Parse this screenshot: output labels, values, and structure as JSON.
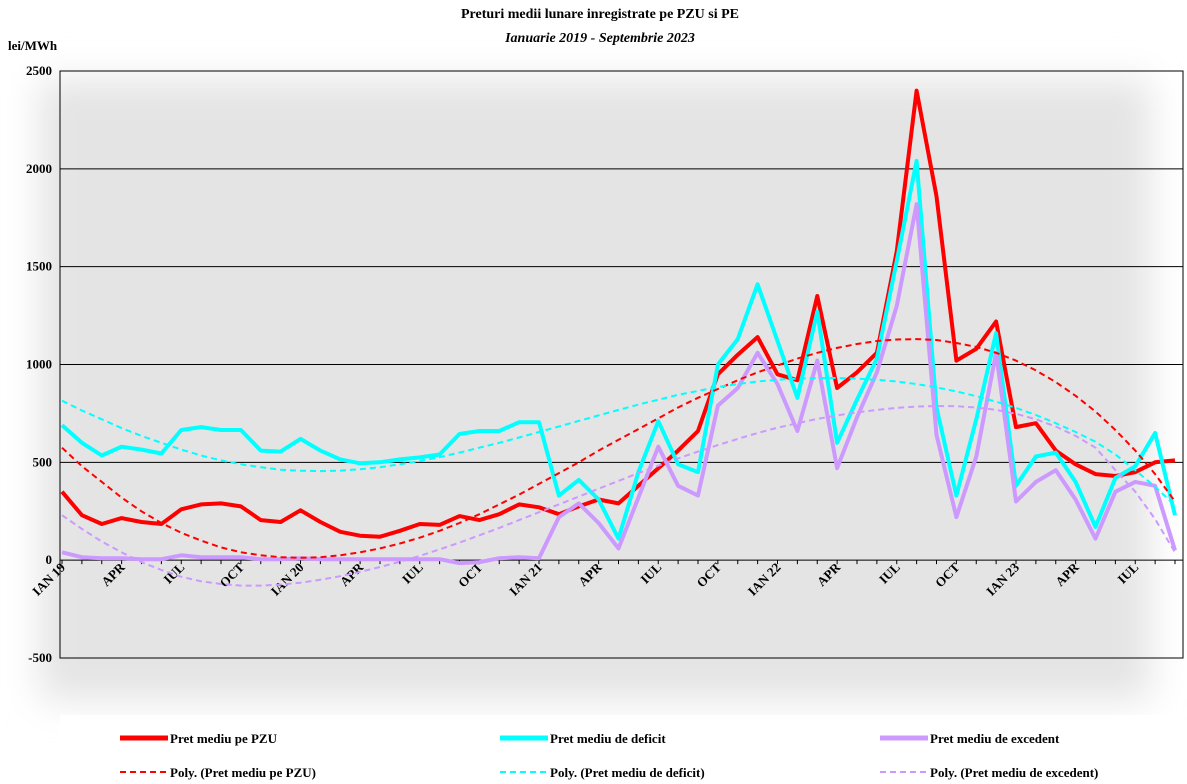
{
  "chart_data": {
    "type": "line",
    "title": "Preturi medii lunare inregistrate pe PZU si PE",
    "subtitle": "Ianuarie 2019 - Septembrie 2023",
    "y_label": "lei/MWh",
    "categories": [
      "IAN 19",
      null,
      null,
      "APR",
      null,
      null,
      "IUL",
      null,
      null,
      "OCT",
      null,
      null,
      "IAN 20",
      null,
      null,
      "APR",
      null,
      null,
      "IUL",
      null,
      null,
      "OCT",
      null,
      null,
      "IAN 21",
      null,
      null,
      "APR",
      null,
      null,
      "IUL",
      null,
      null,
      "OCT",
      null,
      null,
      "IAN 22",
      null,
      null,
      "APR",
      null,
      null,
      "IUL",
      null,
      null,
      "OCT",
      null,
      null,
      "IAN 23",
      null,
      null,
      "APR",
      null,
      null,
      "IUL",
      null,
      null
    ],
    "ylim": [
      -500,
      2500
    ],
    "yticks": [
      -500,
      0,
      500,
      1000,
      1500,
      2000,
      2500
    ],
    "grid": true,
    "series": [
      {
        "name": "Pret mediu pe PZU",
        "color": "#ff0000",
        "dash": false,
        "values": [
          350,
          230,
          185,
          215,
          195,
          185,
          260,
          285,
          290,
          275,
          205,
          195,
          255,
          195,
          145,
          125,
          120,
          150,
          185,
          180,
          225,
          205,
          235,
          285,
          270,
          235,
          275,
          310,
          290,
          380,
          470,
          560,
          660,
          950,
          1050,
          1140,
          950,
          920,
          1350,
          880,
          960,
          1060,
          1580,
          2400,
          1860,
          1020,
          1080,
          1220,
          680,
          700,
          560,
          490,
          440,
          430,
          450,
          500,
          510
        ]
      },
      {
        "name": "Pret mediu de deficit",
        "color": "#00ffff",
        "dash": false,
        "values": [
          690,
          600,
          535,
          580,
          565,
          545,
          665,
          680,
          665,
          665,
          560,
          555,
          620,
          560,
          515,
          495,
          500,
          515,
          525,
          540,
          645,
          660,
          660,
          705,
          705,
          330,
          410,
          310,
          110,
          450,
          710,
          490,
          450,
          1000,
          1130,
          1410,
          1120,
          830,
          1270,
          600,
          820,
          1030,
          1530,
          2040,
          780,
          330,
          720,
          1160,
          380,
          530,
          550,
          400,
          170,
          420,
          480,
          650,
          230
        ]
      },
      {
        "name": "Pret mediu de excedent",
        "color": "#cc99ff",
        "dash": false,
        "values": [
          40,
          15,
          10,
          10,
          5,
          5,
          25,
          15,
          15,
          15,
          5,
          5,
          10,
          5,
          5,
          5,
          5,
          5,
          5,
          5,
          -15,
          -10,
          10,
          15,
          10,
          220,
          290,
          190,
          60,
          320,
          580,
          380,
          330,
          790,
          880,
          1060,
          900,
          660,
          1020,
          470,
          730,
          960,
          1300,
          1820,
          640,
          220,
          530,
          1060,
          300,
          400,
          460,
          310,
          110,
          350,
          400,
          380,
          50
        ]
      },
      {
        "name": "Poly. (Pret mediu pe PZU)",
        "color": "#ff0000",
        "dash": true,
        "values": [
          575,
          480,
          400,
          320,
          250,
          190,
          140,
          100,
          65,
          40,
          25,
          15,
          12,
          15,
          25,
          40,
          60,
          85,
          115,
          150,
          190,
          235,
          285,
          335,
          390,
          445,
          500,
          560,
          615,
          670,
          725,
          780,
          830,
          875,
          920,
          960,
          995,
          1030,
          1060,
          1085,
          1105,
          1120,
          1128,
          1130,
          1125,
          1110,
          1090,
          1060,
          1020,
          970,
          910,
          840,
          760,
          665,
          560,
          440,
          300
        ]
      },
      {
        "name": "Poly. (Pret mediu de deficit)",
        "color": "#00ffff",
        "dash": true,
        "values": [
          815,
          765,
          720,
          675,
          635,
          600,
          565,
          535,
          510,
          490,
          475,
          462,
          457,
          455,
          458,
          465,
          475,
          490,
          507,
          527,
          550,
          575,
          600,
          627,
          655,
          683,
          712,
          740,
          768,
          795,
          820,
          845,
          865,
          885,
          900,
          913,
          922,
          928,
          931,
          931,
          928,
          922,
          913,
          900,
          883,
          862,
          838,
          810,
          778,
          742,
          700,
          655,
          605,
          540,
          460,
          375,
          280
        ]
      },
      {
        "name": "Poly. (Pret mediu de excedent)",
        "color": "#cc99ff",
        "dash": true,
        "values": [
          230,
          160,
          95,
          40,
          -10,
          -50,
          -85,
          -108,
          -122,
          -130,
          -130,
          -125,
          -115,
          -100,
          -82,
          -60,
          -35,
          -8,
          22,
          55,
          90,
          127,
          165,
          205,
          245,
          285,
          325,
          365,
          405,
          445,
          483,
          520,
          555,
          588,
          620,
          650,
          677,
          700,
          722,
          740,
          755,
          768,
          778,
          785,
          788,
          787,
          780,
          768,
          748,
          720,
          683,
          635,
          575,
          460,
          350,
          210,
          40
        ]
      }
    ]
  }
}
